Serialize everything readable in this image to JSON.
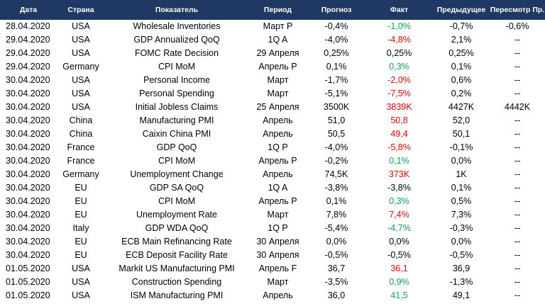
{
  "headers": {
    "date": "Дата",
    "country": "Страна",
    "indicator": "Показатель",
    "period": "Период",
    "forecast": "Прогноз",
    "actual": "Факт",
    "previous": "Предыдущее",
    "revision": "Пересмотр Пр."
  },
  "colors": {
    "header_bg": "#1f3864",
    "positive": "#00b050",
    "negative": "#ff0000"
  },
  "rows": [
    {
      "date": "28.04.2020",
      "country": "USA",
      "indicator": "Wholesale Inventories",
      "period": "Март P",
      "forecast": "-0,4%",
      "actual": "-1,0%",
      "actual_dir": "pos",
      "previous": "-0,7%",
      "revision": "-0,6%"
    },
    {
      "date": "29.04.2020",
      "country": "USA",
      "indicator": "GDP Annualized QoQ",
      "period": "1Q A",
      "forecast": "-4,0%",
      "actual": "-4,8%",
      "actual_dir": "neg",
      "previous": "2,1%",
      "revision": "--"
    },
    {
      "date": "29.04.2020",
      "country": "USA",
      "indicator": "FOMC Rate Decision",
      "period": "29 Апреля",
      "forecast": "0,25%",
      "actual": "0,25%",
      "actual_dir": "neu",
      "previous": "0,25%",
      "revision": "--"
    },
    {
      "date": "29.04.2020",
      "country": "Germany",
      "indicator": "CPI MoM",
      "period": "Апрель P",
      "forecast": "0,1%",
      "actual": "0,3%",
      "actual_dir": "pos",
      "previous": "0,1%",
      "revision": "--"
    },
    {
      "date": "30.04.2020",
      "country": "USA",
      "indicator": "Personal Income",
      "period": "Март",
      "forecast": "-1,7%",
      "actual": "-2,0%",
      "actual_dir": "neg",
      "previous": "0,6%",
      "revision": "--"
    },
    {
      "date": "30.04.2020",
      "country": "USA",
      "indicator": "Personal Spending",
      "period": "Март",
      "forecast": "-5,1%",
      "actual": "-7,5%",
      "actual_dir": "neg",
      "previous": "0,2%",
      "revision": "--"
    },
    {
      "date": "30.04.2020",
      "country": "USA",
      "indicator": "Initial Jobless Claims",
      "period": "25 Апреля",
      "forecast": "3500K",
      "actual": "3839K",
      "actual_dir": "neg",
      "previous": "4427K",
      "revision": "4442K"
    },
    {
      "date": "30.04.2020",
      "country": "China",
      "indicator": "Manufacturing PMI",
      "period": "Апрель",
      "forecast": "51,0",
      "actual": "50,8",
      "actual_dir": "neg",
      "previous": "52,0",
      "revision": "--"
    },
    {
      "date": "30.04.2020",
      "country": "China",
      "indicator": "Caixin China PMI",
      "period": "Апрель",
      "forecast": "50,5",
      "actual": "49,4",
      "actual_dir": "neg",
      "previous": "50,1",
      "revision": "--"
    },
    {
      "date": "30.04.2020",
      "country": "France",
      "indicator": "GDP QoQ",
      "period": "1Q P",
      "forecast": "-4,0%",
      "actual": "-5,8%",
      "actual_dir": "neg",
      "previous": "-0,1%",
      "revision": "--"
    },
    {
      "date": "30.04.2020",
      "country": "France",
      "indicator": "CPI MoM",
      "period": "Апрель P",
      "forecast": "-0,2%",
      "actual": "0,1%",
      "actual_dir": "pos",
      "previous": "0,0%",
      "revision": "--"
    },
    {
      "date": "30.04.2020",
      "country": "Germany",
      "indicator": "Unemployment Change",
      "period": "Апрель",
      "forecast": "74,5K",
      "actual": "373K",
      "actual_dir": "neg",
      "previous": "1K",
      "revision": "--"
    },
    {
      "date": "30.04.2020",
      "country": "EU",
      "indicator": "GDP SA QoQ",
      "period": "1Q A",
      "forecast": "-3,8%",
      "actual": "-3,8%",
      "actual_dir": "neu",
      "previous": "0,1%",
      "revision": "--"
    },
    {
      "date": "30.04.2020",
      "country": "EU",
      "indicator": "CPI MoM",
      "period": "Апрель P",
      "forecast": "0,1%",
      "actual": "0,3%",
      "actual_dir": "pos",
      "previous": "0,5%",
      "revision": "--"
    },
    {
      "date": "30.04.2020",
      "country": "EU",
      "indicator": "Unemployment Rate",
      "period": "Март",
      "forecast": "7,8%",
      "actual": "7,4%",
      "actual_dir": "neg",
      "previous": "7,3%",
      "revision": "--"
    },
    {
      "date": "30.04.2020",
      "country": "Italy",
      "indicator": "GDP WDA QoQ",
      "period": "1Q P",
      "forecast": "-5,4%",
      "actual": "-4,7%",
      "actual_dir": "pos",
      "previous": "-0,3%",
      "revision": "--"
    },
    {
      "date": "30.04.2020",
      "country": "EU",
      "indicator": "ECB Main Refinancing Rate",
      "period": "30 Апреля",
      "forecast": "0,0%",
      "actual": "0,0%",
      "actual_dir": "neu",
      "previous": "0,0%",
      "revision": "--"
    },
    {
      "date": "30.04.2020",
      "country": "EU",
      "indicator": "ECB Deposit Facility Rate",
      "period": "30 Апреля",
      "forecast": "-0,5%",
      "actual": "-0,5%",
      "actual_dir": "neu",
      "previous": "-0,5%",
      "revision": "--"
    },
    {
      "date": "01.05.2020",
      "country": "USA",
      "indicator": "Markit US Manufacturing PMI",
      "period": "Апрель F",
      "forecast": "36,7",
      "actual": "36,1",
      "actual_dir": "neg",
      "previous": "36,9",
      "revision": "--"
    },
    {
      "date": "01.05.2020",
      "country": "USA",
      "indicator": "Construction Spending",
      "period": "Март",
      "forecast": "-3,5%",
      "actual": "0,9%",
      "actual_dir": "pos",
      "previous": "-1,3%",
      "revision": "--"
    },
    {
      "date": "01.05.2020",
      "country": "USA",
      "indicator": "ISM Manufacturing PMI",
      "period": "Апрель",
      "forecast": "36,0",
      "actual": "41,5",
      "actual_dir": "pos",
      "previous": "49,1",
      "revision": "--"
    }
  ]
}
